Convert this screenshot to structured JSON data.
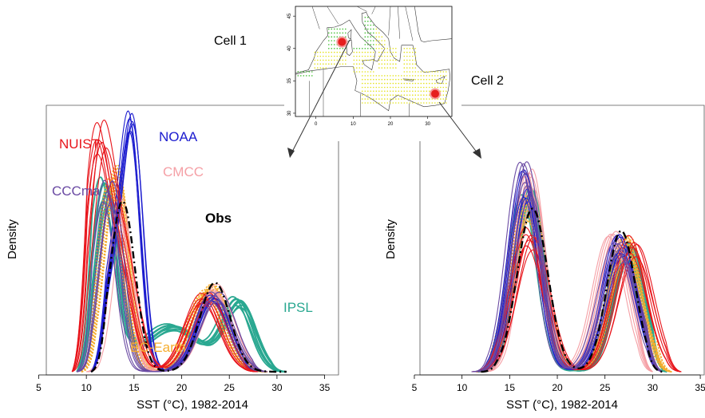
{
  "map": {
    "lat_ticks": [
      "30",
      "35",
      "40",
      "45"
    ],
    "lon_ticks": [
      "0",
      "10",
      "20",
      "30"
    ],
    "markers": [
      {
        "name": "Cell 1",
        "lon": 7,
        "lat": 41
      },
      {
        "name": "Cell 2",
        "lon": 32,
        "lat": 33
      }
    ]
  },
  "cell_labels": {
    "cell1": "Cell 1",
    "cell2": "Cell 2"
  },
  "model_labels": [
    {
      "key": "nuist",
      "text": "NUIST",
      "color": "#e8151b"
    },
    {
      "key": "noaa",
      "text": "NOAA",
      "color": "#1c1ccf"
    },
    {
      "key": "cmcc",
      "text": "CMCC",
      "color": "#f5a0a6"
    },
    {
      "key": "cccma",
      "text": "CCCma",
      "color": "#6a4aa3"
    },
    {
      "key": "obs",
      "text": "Obs",
      "color": "#000000"
    },
    {
      "key": "ipsl",
      "text": "IPSL",
      "color": "#2aa891"
    },
    {
      "key": "ecearth",
      "text": "EC-Earth",
      "color": "#f5ad2e"
    }
  ],
  "chart_data": [
    {
      "type": "line",
      "panel": "Cell 1",
      "xlabel": "SST (°C), 1982-2014",
      "ylabel": "Density",
      "xlim": [
        4.5,
        36.5
      ],
      "ylim": [
        0,
        0.17
      ],
      "xticks": [
        5,
        10,
        15,
        20,
        25,
        30,
        35
      ],
      "series": [
        {
          "name": "NUIST",
          "color": "#e8151b",
          "peaks": [
            [
              11.2,
              0.13,
              1.2
            ],
            [
              13.5,
              0.08,
              1.5
            ],
            [
              22.5,
              0.05,
              1.8
            ]
          ],
          "min": 8.5,
          "max": 28
        },
        {
          "name": "NOAA",
          "color": "#1c1ccf",
          "peaks": [
            [
              14.6,
              0.14,
              1.0
            ],
            [
              12.8,
              0.07,
              1.3
            ],
            [
              23.0,
              0.05,
              1.7
            ]
          ],
          "min": 10.5,
          "max": 28
        },
        {
          "name": "CMCC",
          "color": "#f5a0a6",
          "peaks": [
            [
              13.5,
              0.11,
              1.1
            ],
            [
              23.5,
              0.055,
              1.8
            ]
          ],
          "min": 10,
          "max": 29
        },
        {
          "name": "CCCma",
          "color": "#6a4aa3",
          "peaks": [
            [
              12.3,
              0.12,
              1.2
            ],
            [
              23.5,
              0.05,
              1.8
            ]
          ],
          "min": 9,
          "max": 29
        },
        {
          "name": "Obs",
          "color": "#000000",
          "peaks": [
            [
              13.8,
              0.115,
              1.3
            ],
            [
              23.5,
              0.06,
              1.6
            ]
          ],
          "min": 10.5,
          "max": 31
        },
        {
          "name": "IPSL",
          "color": "#2aa891",
          "peaks": [
            [
              12.0,
              0.12,
              1.3
            ],
            [
              19.0,
              0.03,
              3.0
            ],
            [
              26.0,
              0.045,
              1.6
            ]
          ],
          "min": 9,
          "max": 31
        },
        {
          "name": "EC-Earth",
          "color": "#f5ad2e",
          "peaks": [
            [
              12.8,
              0.13,
              1.3
            ],
            [
              22.8,
              0.055,
              1.8
            ]
          ],
          "min": 9.5,
          "max": 29
        }
      ]
    },
    {
      "type": "line",
      "panel": "Cell 2",
      "xlabel": "SST (°C), 1982-2014",
      "ylabel": "Density",
      "xlim": [
        4.5,
        36.5
      ],
      "ylim": [
        0,
        0.17
      ],
      "xticks": [
        5,
        10,
        15,
        20,
        25,
        30,
        35
      ],
      "series": [
        {
          "name": "NUIST",
          "color": "#e8151b",
          "peaks": [
            [
              17.0,
              0.09,
              1.7
            ],
            [
              27.8,
              0.085,
              1.8
            ]
          ],
          "min": 11,
          "max": 33
        },
        {
          "name": "NOAA",
          "color": "#1c1ccf",
          "peaks": [
            [
              16.5,
              0.125,
              1.5
            ],
            [
              26.5,
              0.085,
              1.7
            ]
          ],
          "min": 11,
          "max": 31
        },
        {
          "name": "CMCC",
          "color": "#f5a0a6",
          "peaks": [
            [
              17.0,
              0.13,
              1.4
            ],
            [
              25.8,
              0.09,
              1.7
            ]
          ],
          "min": 12,
          "max": 30
        },
        {
          "name": "CCCma",
          "color": "#6a4aa3",
          "peaks": [
            [
              16.6,
              0.13,
              1.5
            ],
            [
              26.5,
              0.08,
              1.8
            ]
          ],
          "min": 11,
          "max": 31
        },
        {
          "name": "Obs",
          "color": "#000000",
          "peaks": [
            [
              17.4,
              0.11,
              1.6
            ],
            [
              26.7,
              0.095,
              1.5
            ]
          ],
          "min": 12,
          "max": 31
        },
        {
          "name": "IPSL",
          "color": "#2aa891",
          "peaks": [
            [
              16.8,
              0.115,
              1.5
            ],
            [
              27.2,
              0.08,
              1.6
            ]
          ],
          "min": 11.5,
          "max": 31.5
        },
        {
          "name": "EC-Earth",
          "color": "#f5ad2e",
          "peaks": [
            [
              16.9,
              0.11,
              1.6
            ],
            [
              27.2,
              0.085,
              1.7
            ]
          ],
          "min": 11.5,
          "max": 32
        }
      ]
    }
  ]
}
